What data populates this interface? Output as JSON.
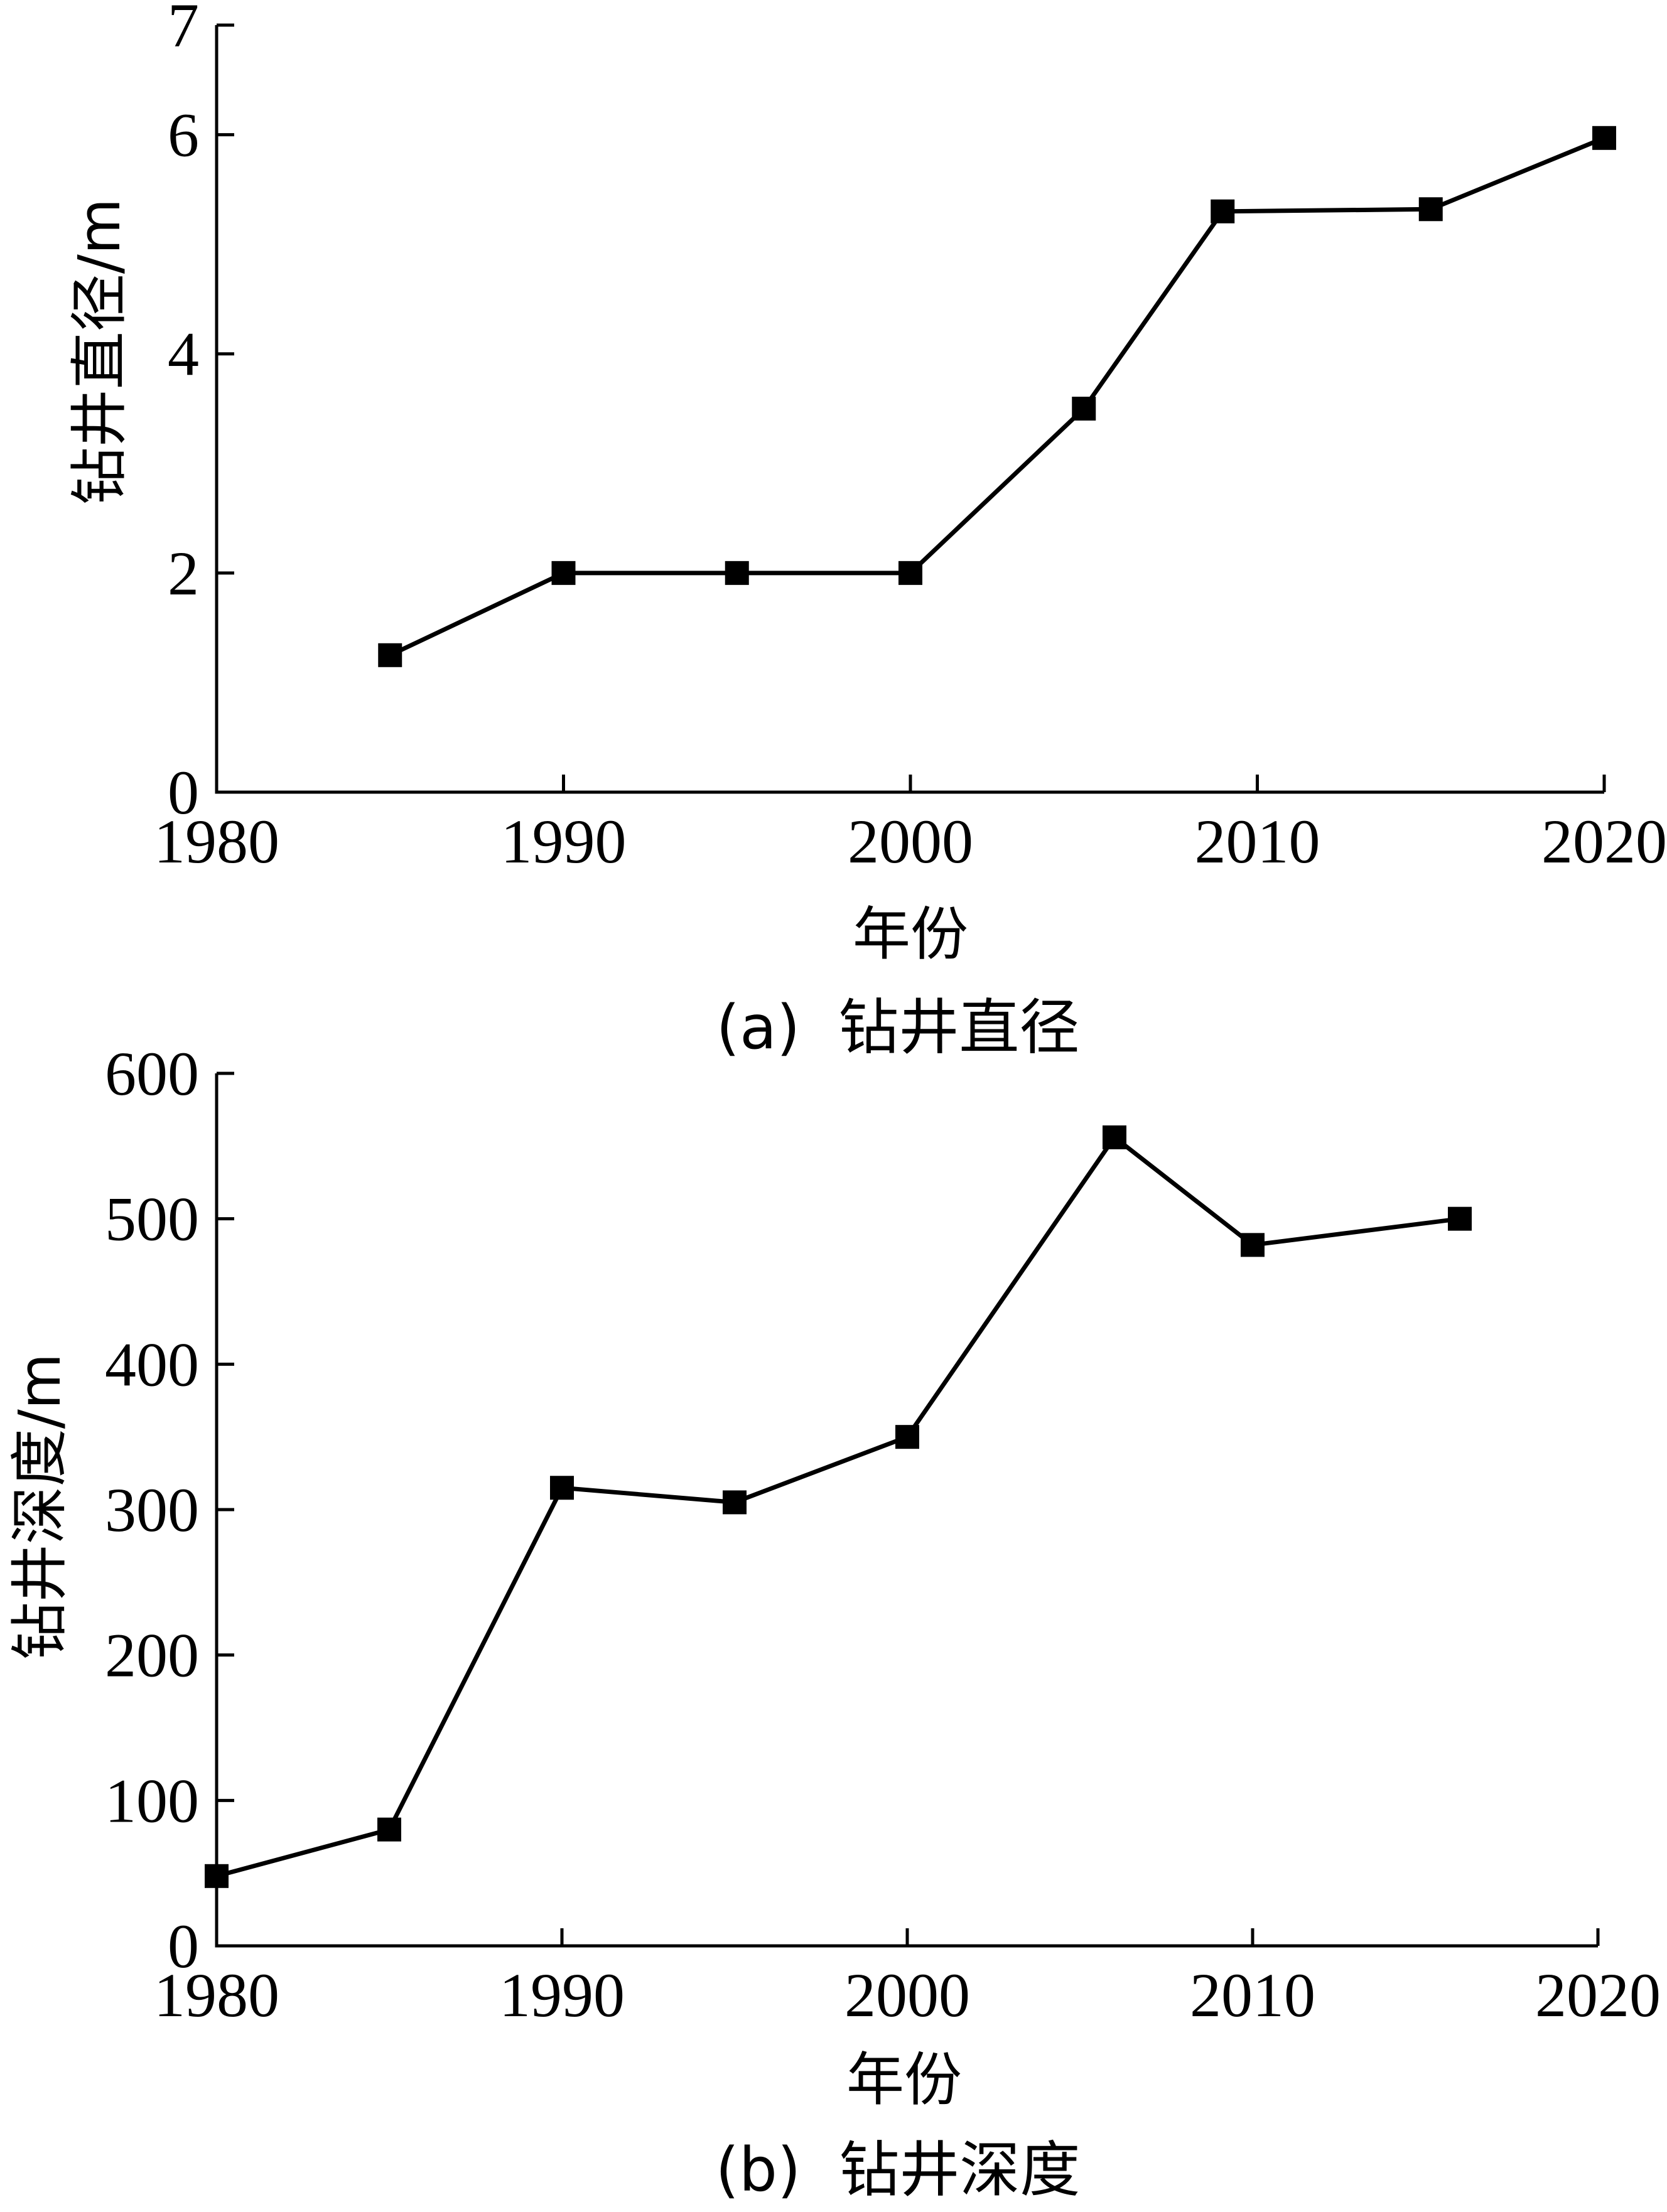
{
  "chart_data": [
    {
      "type": "line",
      "caption": "(a)  钻井直径",
      "xlabel": "年份",
      "ylabel": "钻井直径/m",
      "xlim": [
        1980,
        2020
      ],
      "ylim": [
        0,
        7
      ],
      "xticks": [
        "1980",
        "1990",
        "2000",
        "2010",
        "2020"
      ],
      "yticks": [
        "0",
        "2",
        "4",
        "6",
        "7"
      ],
      "series": [
        {
          "x": [
            1985,
            1990,
            1995,
            2000,
            2005,
            2009,
            2015,
            2020
          ],
          "y": [
            1.25,
            2,
            2,
            2,
            3.5,
            5.3,
            5.32,
            5.97
          ]
        }
      ]
    },
    {
      "type": "line",
      "caption": "(b)  钻井深度",
      "xlabel": "年份",
      "ylabel": "钻井深度/m",
      "xlim": [
        1980,
        2020
      ],
      "ylim": [
        0,
        600
      ],
      "xticks": [
        "1980",
        "1990",
        "2000",
        "2010",
        "2020"
      ],
      "yticks": [
        "0",
        "100",
        "200",
        "300",
        "400",
        "500",
        "600"
      ],
      "series": [
        {
          "x": [
            1980,
            1985,
            1990,
            1995,
            2000,
            2006,
            2010,
            2016
          ],
          "y": [
            48,
            80,
            315,
            305,
            350,
            556,
            482,
            500
          ]
        }
      ]
    }
  ]
}
